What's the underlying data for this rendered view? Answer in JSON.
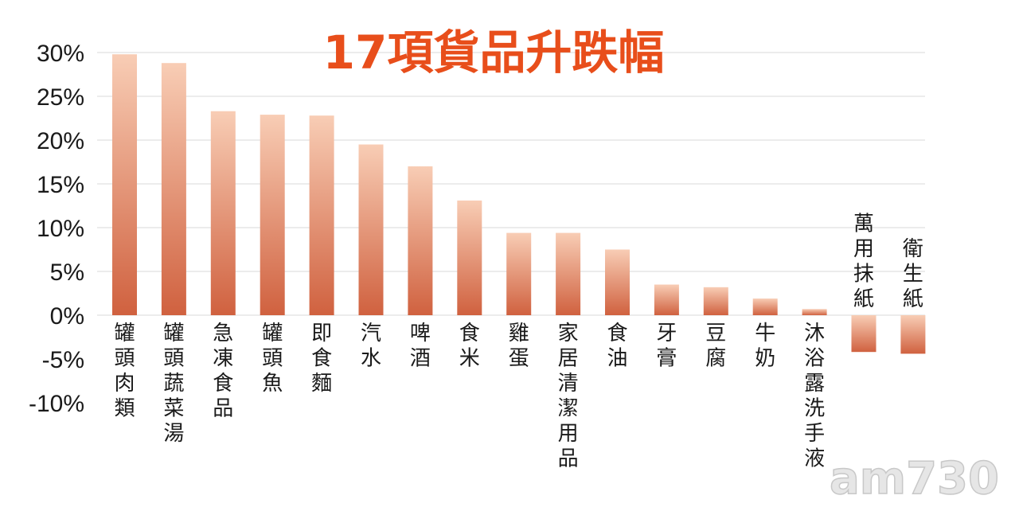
{
  "chart_data": {
    "type": "bar",
    "title": "17項貨品升跌幅",
    "categories": [
      "罐頭肉類",
      "罐頭蔬菜湯",
      "急凍食品",
      "罐頭魚",
      "即食麵",
      "汽水",
      "啤酒",
      "食米",
      "雞蛋",
      "家居清潔用品",
      "食油",
      "牙膏",
      "豆腐",
      "牛奶",
      "沐浴露洗手液",
      "萬用抹紙",
      "衛生紙"
    ],
    "values": [
      29.8,
      28.8,
      23.3,
      22.9,
      22.8,
      19.5,
      17.0,
      13.1,
      9.4,
      9.4,
      7.5,
      3.5,
      3.2,
      1.9,
      0.7,
      -4.2,
      -4.4
    ],
    "ylim": [
      -10,
      30
    ],
    "yticks": [
      -10,
      -5,
      0,
      5,
      10,
      15,
      20,
      25,
      30
    ],
    "ytick_labels": [
      "-10%",
      "-5%",
      "0%",
      "5%",
      "10%",
      "15%",
      "20%",
      "25%",
      "30%"
    ],
    "grid": true,
    "colors": {
      "bar_top": "#f8cdb5",
      "bar_bottom": "#d0613f",
      "title": "#e84e1b",
      "grid": "#d9d9d9"
    }
  },
  "watermark": "am730"
}
